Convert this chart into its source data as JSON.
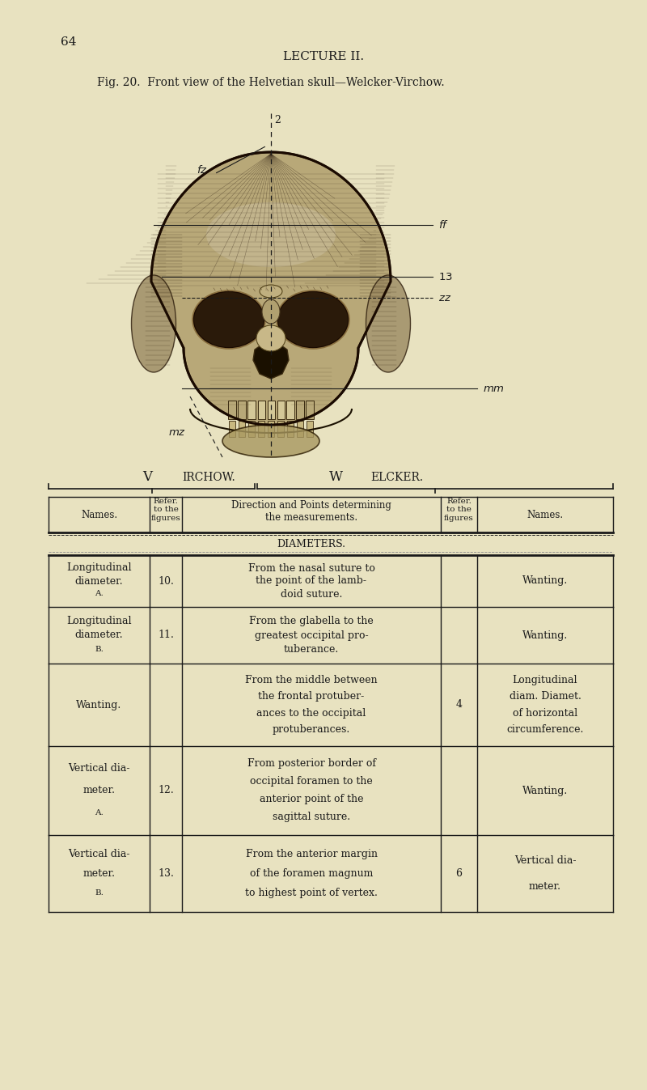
{
  "page_number": "64",
  "lecture_title": "LECTURE II.",
  "fig_caption": "Fig. 20.  Front view of the Helvetian skull—Welcker-Virchow.",
  "bg_color": "#e8e2c0",
  "text_color": "#1a1a1a",
  "virchow_label": "Virchow.",
  "welcker_label": "Welcker.",
  "diameters_header": "DIAMETERS.",
  "rows": [
    {
      "virchow_name": "Longitudinal\ndiameter.\nA.",
      "virchow_ref": "10.",
      "description": "From the nasal suture to\nthe point of the lamb-\ndoid suture.",
      "welcker_ref": "",
      "welcker_name": "Wanting."
    },
    {
      "virchow_name": "Longitudinal\ndiameter.\nB.",
      "virchow_ref": "11.",
      "description": "From the glabella to the\ngreatest occipital pro-\ntuberance.",
      "welcker_ref": "",
      "welcker_name": "Wanting."
    },
    {
      "virchow_name": "Wanting.",
      "virchow_ref": "",
      "description": "From the middle between\nthe frontal protuber-\nances to the occipital\nprotuberances.",
      "welcker_ref": "4",
      "welcker_name": "Longitudinal\ndiam. Diamet.\nof horizontal\ncircumference."
    },
    {
      "virchow_name": "Vertical dia-\nmeter.\nA.",
      "virchow_ref": "12.",
      "description": "From posterior border of\noccipital foramen to the\nanterior point of the\nsagittal suture.",
      "welcker_ref": "",
      "welcker_name": "Wanting."
    },
    {
      "virchow_name": "Vertical dia-\nmeter.\nB.",
      "virchow_ref": "13.",
      "description": "From the anterior margin\nof the foramen magnum\nto highest point of vertex.",
      "welcker_ref": "6",
      "welcker_name": "Vertical dia-\nmeter."
    }
  ]
}
